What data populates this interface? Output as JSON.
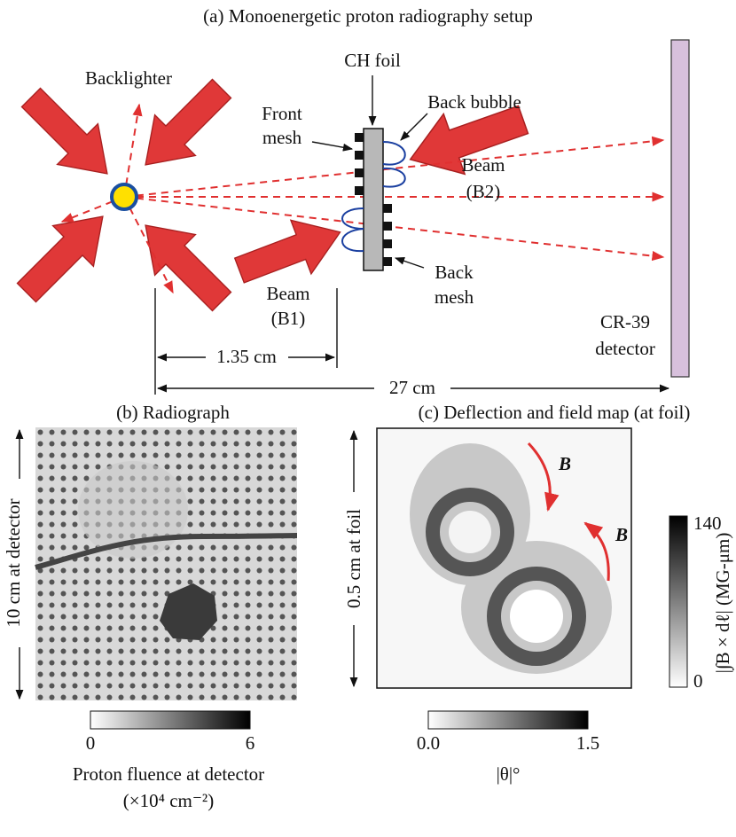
{
  "panel_a": {
    "title": "(a) Monoenergetic proton radiography setup",
    "backlighter": "Backlighter",
    "ch_foil": "CH foil",
    "front_mesh": [
      "Front",
      "mesh"
    ],
    "back_bubble": "Back bubble",
    "beam_b2": [
      "Beam",
      "(B2)"
    ],
    "beam_b1": [
      "Beam",
      "(B1)"
    ],
    "back_mesh": [
      "Back",
      "mesh"
    ],
    "detector": [
      "CR-39",
      "detector"
    ],
    "short_distance": "1.35 cm",
    "long_distance": "27 cm"
  },
  "panel_b": {
    "title": "(b) Radiograph",
    "scale_label": "10 cm at detector",
    "colorbar": {
      "min": "0",
      "max": "6",
      "label": "Proton fluence at detector",
      "units": "(×10⁴ cm⁻²)"
    }
  },
  "panel_c": {
    "title": "(c) Deflection and field map (at foil)",
    "field_labels": [
      "B",
      "B"
    ],
    "scale_label": "0.5 cm at foil",
    "field_colorbar": {
      "max": "140",
      "min": "0",
      "label": "|∫B × dℓ| (MG-μm)"
    },
    "angle_colorbar": {
      "min": "0.0",
      "max": "1.5",
      "label": "|θ|°"
    }
  }
}
